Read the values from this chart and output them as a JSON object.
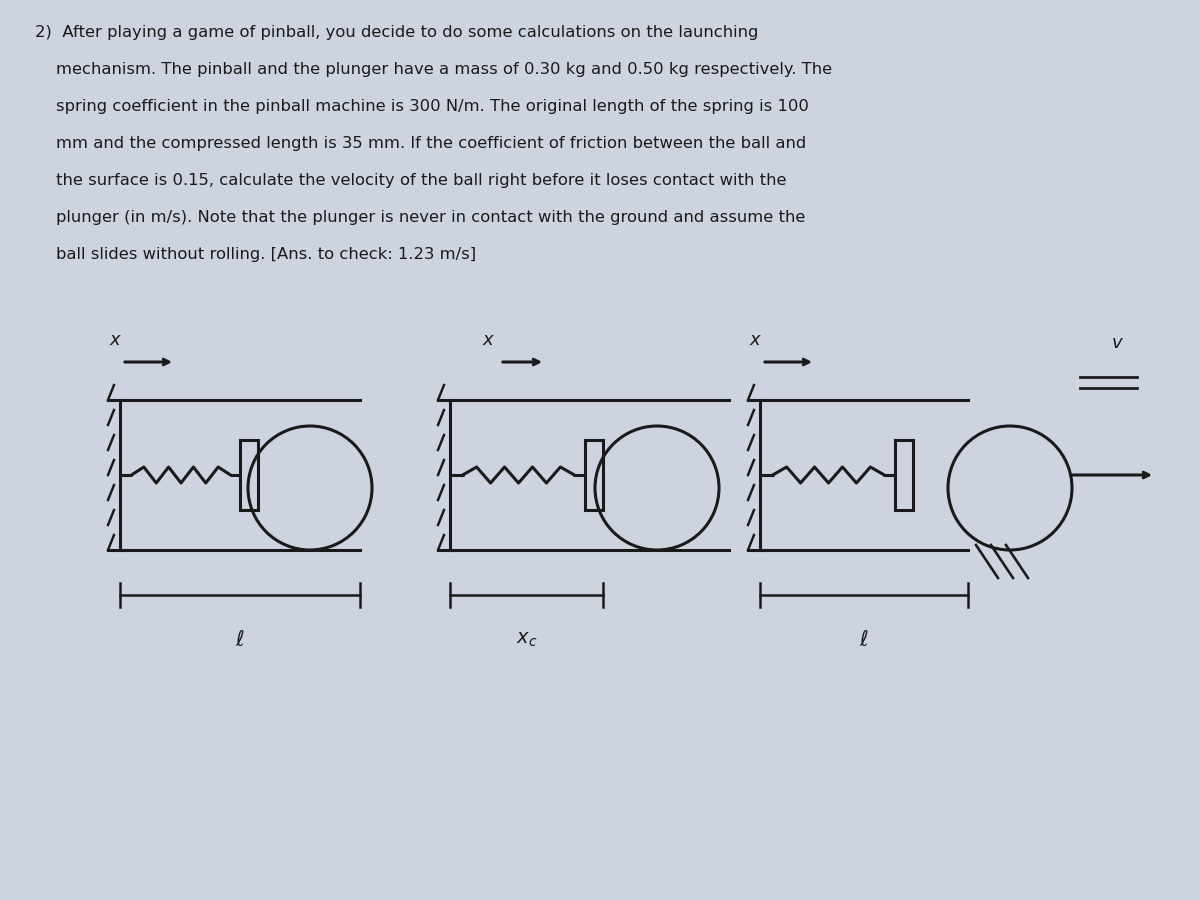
{
  "bg_color": "#cdd4df",
  "text_color": "#1a1a1a",
  "line_color": "#1a1a1a",
  "title_line1": "2)  After playing a game of pinball, you decide to do some calculations on the launching",
  "title_line2": "    mechanism. The pinball and the plunger have a mass of 0.30 kg and 0.50 kg respectively. The",
  "title_line3": "    spring coefficient in the pinball machine is 300 N/m. The original length of the spring is 100",
  "title_line4": "    mm and the compressed length is 35 mm. If the coefficient of friction between the ball and",
  "title_line5": "    the surface is 0.15, calculate the velocity of the ball right before it loses contact with the",
  "title_line6": "    plunger (in m/s). Note that the plunger is never in contact with the ground and assume the",
  "title_line7": "    ball slides without rolling. [Ans. to check: 1.23 m/s]",
  "lw": 2.2
}
